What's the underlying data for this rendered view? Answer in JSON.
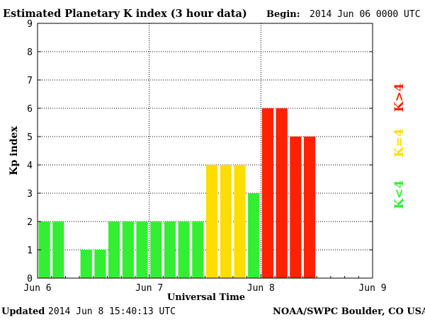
{
  "header": {
    "title": "Estimated Planetary K index (3 hour data)",
    "begin_label": "Begin:",
    "begin_value": "2014 Jun 06 0000 UTC"
  },
  "footer": {
    "updated_label": "Updated",
    "updated_value": "2014 Jun  8 15:40:13 UTC",
    "source": "NOAA/SWPC Boulder, CO USA"
  },
  "legend": {
    "k_gt4": "K>4",
    "k_eq4": "K=4",
    "k_lt4": "K<4"
  },
  "colors": {
    "low": "#33ee33",
    "mid": "#ffdd00",
    "high": "#ff2200",
    "grid": "#000000",
    "axis": "#000000",
    "background": "#ffffff"
  },
  "chart_data": {
    "type": "bar",
    "xlabel": "Universal Time",
    "ylabel": "Kp index",
    "ylim": [
      0,
      9
    ],
    "yticks": [
      0,
      1,
      2,
      3,
      4,
      5,
      6,
      7,
      8,
      9
    ],
    "x_range_days": [
      0,
      3
    ],
    "xticks": [
      {
        "day": 0,
        "label": "Jun 6"
      },
      {
        "day": 1,
        "label": "Jun 7"
      },
      {
        "day": 2,
        "label": "Jun 8"
      },
      {
        "day": 3,
        "label": "Jun 9"
      }
    ],
    "bin_hours": 3,
    "values": [
      2,
      2,
      null,
      1,
      1,
      2,
      2,
      2,
      2,
      2,
      2,
      2,
      4,
      4,
      4,
      3,
      6,
      6,
      5,
      5
    ],
    "grid": "dotted",
    "legend_position": "right"
  }
}
